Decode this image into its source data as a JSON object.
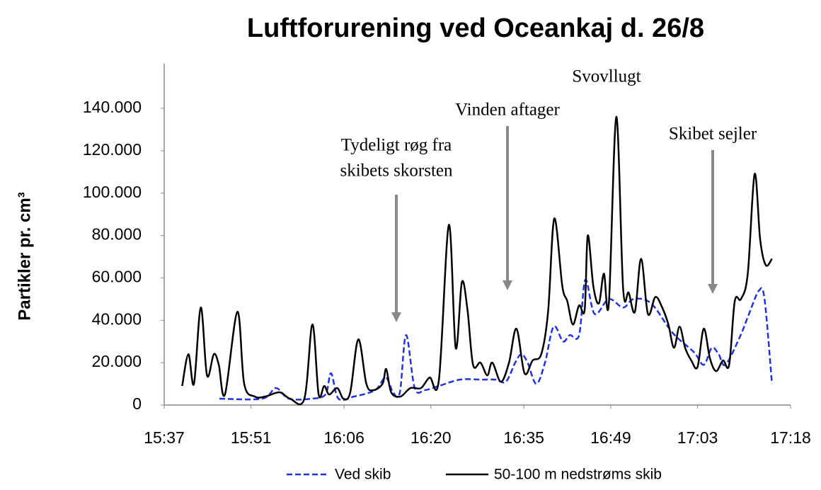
{
  "chart_data": {
    "type": "line",
    "title": "Luftforurening ved Oceankaj d. 26/8",
    "y_label": "Partikler pr. cm³",
    "annotations": [
      {
        "lines": [
          "Tydeligt røg fra",
          "skibets skorsten"
        ]
      },
      {
        "lines": [
          "Vinden aftager"
        ]
      },
      {
        "lines": [
          "Svovllugt"
        ]
      },
      {
        "lines": [
          "Skibet sejler"
        ]
      }
    ],
    "xlim": [
      937,
      1038
    ],
    "xticks": [
      {
        "value": 937,
        "label": "15:37"
      },
      {
        "value": 951,
        "label": "15:51"
      },
      {
        "value": 966,
        "label": "16:06"
      },
      {
        "value": 980,
        "label": "16:20"
      },
      {
        "value": 995,
        "label": "16:35"
      },
      {
        "value": 1009,
        "label": "16:49"
      },
      {
        "value": 1023,
        "label": "17:03"
      },
      {
        "value": 1038,
        "label": "17:18"
      }
    ],
    "ylim": [
      0,
      140000
    ],
    "yticks": [
      0,
      {
        "value": 20000,
        "label": "20.000"
      },
      {
        "value": 40000,
        "label": "40.000"
      },
      {
        "value": 60000,
        "label": "60.000"
      },
      {
        "value": 80000,
        "label": "80.000"
      },
      {
        "value": 100000,
        "label": "100.000"
      },
      {
        "value": 120000,
        "label": "120.000"
      },
      {
        "value": 140000,
        "label": "140.000"
      }
    ],
    "series": [
      {
        "name": "Ved skib",
        "color": "#2233dd",
        "dash": true,
        "x": [
          945.9,
          952.8,
          955.0,
          957.1,
          960.7,
          963.0,
          963.9,
          965.1,
          967.6,
          971.0,
          972.7,
          973.9,
          975.0,
          976.0,
          977.4,
          979.0,
          981.3,
          984.7,
          988.1,
          990.4,
          992.1,
          993.6,
          994.6,
          995.6,
          997.0,
          998.4,
          999.8,
          1001.3,
          1002.4,
          1003.9,
          1004.9,
          1006.4,
          1008.7,
          1011.0,
          1012.7,
          1015.5,
          1019.0,
          1022.4,
          1024.0,
          1025.3,
          1026.4,
          1027.5,
          1029.8,
          1031.3,
          1032.9,
          1033.8,
          1035.0
        ],
        "values": [
          3000,
          3000,
          8000,
          3000,
          3000,
          5000,
          15000,
          3000,
          4000,
          7000,
          13000,
          6000,
          6000,
          33000,
          8000,
          7000,
          9000,
          12000,
          12000,
          12000,
          11000,
          20000,
          24000,
          20000,
          10000,
          20000,
          37000,
          30000,
          33000,
          33000,
          59000,
          43000,
          50000,
          46000,
          50000,
          48000,
          34000,
          25000,
          19000,
          27000,
          24000,
          19000,
          32000,
          43000,
          54000,
          50000,
          10000
        ]
      },
      {
        "name": "50-100 m nedstrøms skib",
        "color": "#000000",
        "dash": false,
        "x": [
          939.9,
          940.9,
          941.8,
          942.9,
          943.9,
          945.0,
          945.8,
          946.8,
          948.8,
          949.9,
          951.6,
          953.3,
          955.6,
          957.3,
          959.6,
          960.9,
          961.9,
          962.8,
          963.6,
          964.9,
          965.9,
          967.0,
          968.3,
          969.6,
          970.7,
          972.2,
          972.8,
          973.6,
          975.1,
          976.7,
          978.4,
          979.8,
          981.3,
          982.9,
          984.0,
          985.0,
          985.9,
          986.8,
          988.0,
          989.1,
          989.9,
          991.3,
          992.6,
          993.8,
          995.1,
          996.4,
          997.8,
          998.9,
          999.9,
          1001.2,
          1002.0,
          1002.9,
          1003.9,
          1004.8,
          1005.3,
          1006.2,
          1007.1,
          1007.9,
          1008.7,
          1009.9,
          1011.0,
          1011.9,
          1012.9,
          1013.9,
          1015.0,
          1016.2,
          1017.3,
          1018.3,
          1019.2,
          1020.1,
          1021.0,
          1022.0,
          1023.0,
          1024.0,
          1025.0,
          1026.0,
          1027.1,
          1028.1,
          1029.0,
          1030.0,
          1031.1,
          1032.2,
          1033.1,
          1034.0,
          1035.0
        ],
        "values": [
          9000,
          24000,
          10000,
          46000,
          14000,
          24000,
          19000,
          5000,
          44000,
          10000,
          4000,
          4000,
          6000,
          3000,
          3000,
          38000,
          5000,
          9000,
          5000,
          8000,
          3000,
          6000,
          31000,
          10000,
          7000,
          10000,
          17000,
          6000,
          4000,
          8000,
          8000,
          13000,
          12000,
          85000,
          27000,
          58000,
          45000,
          19000,
          20000,
          14000,
          20000,
          11000,
          20000,
          36000,
          15000,
          21000,
          24000,
          44000,
          88000,
          56000,
          49000,
          38000,
          47000,
          45000,
          80000,
          56000,
          48000,
          62000,
          48000,
          136000,
          55000,
          53000,
          44000,
          69000,
          43000,
          51000,
          46000,
          38000,
          27000,
          37000,
          27000,
          21000,
          18000,
          36000,
          22000,
          16000,
          21000,
          19000,
          49000,
          50000,
          62000,
          109000,
          78000,
          66000,
          69000
        ]
      }
    ]
  }
}
